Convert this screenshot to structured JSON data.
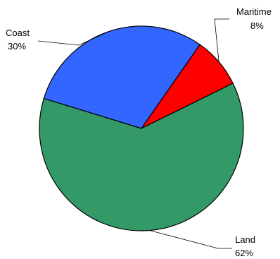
{
  "chart_data": {
    "type": "pie",
    "title": "",
    "series": [
      {
        "name": "Coast",
        "value": 30,
        "value_label": "30%",
        "color": "#3366ff"
      },
      {
        "name": "Maritime",
        "value": 8,
        "value_label": "8%",
        "color": "#ff0000"
      },
      {
        "name": "Land",
        "value": 62,
        "value_label": "62%",
        "color": "#339966"
      }
    ],
    "legend": "none",
    "labels": "outside-with-leader-lines"
  }
}
